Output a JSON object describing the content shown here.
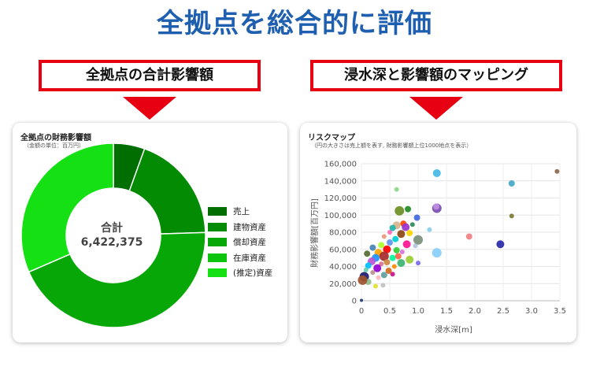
{
  "page": {
    "title": "全拠点を総合的に評価",
    "left_banner": "全拠点の合計影響額",
    "right_banner": "浸水深と影響額のマッピング"
  },
  "colors": {
    "title": "#1f5fb0",
    "banner_border": "#e60012",
    "arrow": "#e60012"
  },
  "donut_card": {
    "title": "全拠点の財務影響額",
    "subtitle": "（金額の単位：百万円）",
    "center_label": "合計",
    "center_value": "6,422,375",
    "legend": [
      {
        "label": "売上",
        "color": "#006e00"
      },
      {
        "label": "建物資産",
        "color": "#038b03"
      },
      {
        "label": "償却資産",
        "color": "#07a707"
      },
      {
        "label": "在庫資産",
        "color": "#0bc40b"
      },
      {
        "label": "(推定)資産",
        "color": "#14e014"
      }
    ]
  },
  "scatter_card": {
    "title": "リスクマップ",
    "subtitle": "（円の大きさは売上額を表す, 財務影響額上位1000地点を表示）"
  },
  "chart_data": [
    {
      "type": "pie",
      "title": "全拠点の財務影響額",
      "categories": [
        "売上",
        "建物資産",
        "償却資産",
        "在庫資産",
        "(推定)資産"
      ],
      "values": [
        0.055,
        0.19,
        0.44,
        0.0,
        0.315
      ],
      "colors": [
        "#006e00",
        "#038b03",
        "#07a707",
        "#0bc40b",
        "#14e014"
      ]
    },
    {
      "type": "scatter",
      "title": "リスクマップ",
      "xlabel": "浸水深[m]",
      "ylabel": "財務影響額[百万円]",
      "xlim": [
        0,
        3.5
      ],
      "ylim": [
        0,
        160000
      ],
      "xticks": [
        "0",
        "0.5",
        "1.0",
        "1.5",
        "2.0",
        "2.5",
        "3.0",
        "3.5"
      ],
      "yticks": [
        "0",
        "20,000",
        "40,000",
        "60,000",
        "80,000",
        "100,000",
        "120,000",
        "140,000",
        "160,000"
      ],
      "grid": true,
      "points": [
        {
          "x": 3.45,
          "y": 151000,
          "r": 3,
          "color": "#8b6b4a"
        },
        {
          "x": 1.33,
          "y": 149000,
          "r": 5,
          "color": "#45b8e6"
        },
        {
          "x": 2.65,
          "y": 137000,
          "r": 4,
          "color": "#45a8c8"
        },
        {
          "x": 0.62,
          "y": 130000,
          "r": 3,
          "color": "#8fd68f"
        },
        {
          "x": 1.33,
          "y": 108000,
          "r": 6,
          "color": "#7b4db3"
        },
        {
          "x": 1.32,
          "y": 110000,
          "r": 4,
          "color": "#c090e0"
        },
        {
          "x": 0.67,
          "y": 105000,
          "r": 6,
          "color": "#6b8e23"
        },
        {
          "x": 0.82,
          "y": 107000,
          "r": 4,
          "color": "#228b22"
        },
        {
          "x": 0.98,
          "y": 97000,
          "r": 4,
          "color": "#4169e1"
        },
        {
          "x": 2.65,
          "y": 99000,
          "r": 3,
          "color": "#7a7a30"
        },
        {
          "x": 0.74,
          "y": 90000,
          "r": 4,
          "color": "#ff4500"
        },
        {
          "x": 0.62,
          "y": 88000,
          "r": 5,
          "color": "#d2b48c"
        },
        {
          "x": 0.55,
          "y": 85000,
          "r": 4,
          "color": "#20b2aa"
        },
        {
          "x": 0.78,
          "y": 86000,
          "r": 5,
          "color": "#9932cc"
        },
        {
          "x": 0.9,
          "y": 89000,
          "r": 3,
          "color": "#2e8b57"
        },
        {
          "x": 1.2,
          "y": 83000,
          "r": 3,
          "color": "#87ceeb"
        },
        {
          "x": 0.5,
          "y": 80000,
          "r": 3,
          "color": "#ff69b4"
        },
        {
          "x": 0.7,
          "y": 78000,
          "r": 5,
          "color": "#8b4513"
        },
        {
          "x": 0.85,
          "y": 79000,
          "r": 4,
          "color": "#ffd700"
        },
        {
          "x": 1.0,
          "y": 71000,
          "r": 6,
          "color": "#7a8f7a"
        },
        {
          "x": 0.6,
          "y": 72000,
          "r": 4,
          "color": "#00ced1"
        },
        {
          "x": 0.4,
          "y": 75000,
          "r": 3,
          "color": "#e9967a"
        },
        {
          "x": 1.9,
          "y": 75000,
          "r": 4,
          "color": "#f08080"
        },
        {
          "x": 2.45,
          "y": 66000,
          "r": 5,
          "color": "#2828a8"
        },
        {
          "x": 0.5,
          "y": 68000,
          "r": 4,
          "color": "#6495ed"
        },
        {
          "x": 0.8,
          "y": 66000,
          "r": 5,
          "color": "#ff1493"
        },
        {
          "x": 0.35,
          "y": 65000,
          "r": 4,
          "color": "#adff2f"
        },
        {
          "x": 0.95,
          "y": 64000,
          "r": 3,
          "color": "#b0c4de"
        },
        {
          "x": 0.45,
          "y": 60000,
          "r": 5,
          "color": "#ff0000"
        },
        {
          "x": 0.2,
          "y": 62000,
          "r": 4,
          "color": "#4682b4"
        },
        {
          "x": 0.62,
          "y": 59000,
          "r": 4,
          "color": "#32cd32"
        },
        {
          "x": 0.3,
          "y": 56000,
          "r": 5,
          "color": "#ffa500"
        },
        {
          "x": 0.72,
          "y": 57000,
          "r": 3,
          "color": "#da70d6"
        },
        {
          "x": 1.33,
          "y": 56000,
          "r": 6,
          "color": "#87cefa"
        },
        {
          "x": 0.1,
          "y": 55000,
          "r": 4,
          "color": "#556b2f"
        },
        {
          "x": 0.4,
          "y": 52000,
          "r": 6,
          "color": "#a52a2a"
        },
        {
          "x": 0.55,
          "y": 50000,
          "r": 4,
          "color": "#00fa9a"
        },
        {
          "x": 0.25,
          "y": 50000,
          "r": 5,
          "color": "#1e90ff"
        },
        {
          "x": 0.85,
          "y": 48000,
          "r": 5,
          "color": "#9acd32"
        },
        {
          "x": 0.65,
          "y": 52000,
          "r": 4,
          "color": "#ff6347"
        },
        {
          "x": 0.18,
          "y": 46000,
          "r": 5,
          "color": "#ba55d3"
        },
        {
          "x": 0.45,
          "y": 45000,
          "r": 4,
          "color": "#cd853f"
        },
        {
          "x": 0.7,
          "y": 44000,
          "r": 5,
          "color": "#3cb371"
        },
        {
          "x": 1.0,
          "y": 44000,
          "r": 3,
          "color": "#7b68ee"
        },
        {
          "x": 0.35,
          "y": 43000,
          "r": 3,
          "color": "#db7093"
        },
        {
          "x": 0.12,
          "y": 41000,
          "r": 4,
          "color": "#00bfff"
        },
        {
          "x": 0.58,
          "y": 40000,
          "r": 3,
          "color": "#ff8c00"
        },
        {
          "x": 0.28,
          "y": 38000,
          "r": 5,
          "color": "#9400d3"
        },
        {
          "x": 0.08,
          "y": 36000,
          "r": 3,
          "color": "#66cdaa"
        },
        {
          "x": 0.48,
          "y": 35000,
          "r": 4,
          "color": "#d2691e"
        },
        {
          "x": 0.2,
          "y": 33000,
          "r": 3,
          "color": "#bc8f8f"
        },
        {
          "x": 0.4,
          "y": 30000,
          "r": 4,
          "color": "#5f9ea0"
        },
        {
          "x": 0.55,
          "y": 31000,
          "r": 3,
          "color": "#c71585"
        },
        {
          "x": 0.05,
          "y": 28000,
          "r": 6,
          "color": "#1a1a70"
        },
        {
          "x": 0.3,
          "y": 27000,
          "r": 3,
          "color": "#ffb6c1"
        },
        {
          "x": 0.12,
          "y": 22000,
          "r": 4,
          "color": "#8fbc8f"
        },
        {
          "x": 0.02,
          "y": 24000,
          "r": 6,
          "color": "#a0522d"
        },
        {
          "x": 0.25,
          "y": 17000,
          "r": 3,
          "color": "#e0e030"
        },
        {
          "x": 0.38,
          "y": 18000,
          "r": 3,
          "color": "#c0c0c0"
        },
        {
          "x": 0.0,
          "y": 500,
          "r": 2,
          "color": "#1a3a7a"
        }
      ]
    }
  ]
}
